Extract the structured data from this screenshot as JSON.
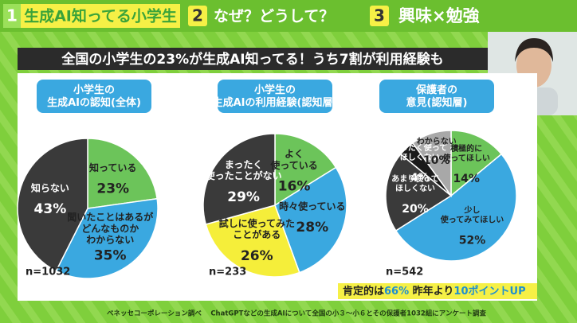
{
  "tabs": [
    {
      "number": "1",
      "label": "生成AI知ってる小学生"
    },
    {
      "number": "2",
      "label": "なぜ？どうして？"
    },
    {
      "number": "3",
      "label": "興味×勉強"
    }
  ],
  "headline": "全国の小学生の23%が生成AI知ってる！うち7割が利用経験も",
  "chart_data": [
    {
      "type": "pie",
      "title": "小学生の\n生成AIの認知(全体)",
      "n_label": "n=1032",
      "categories": [
        "知っている",
        "聞いたことはあるが\nどんなものか\nわからない",
        "知らない"
      ],
      "values": [
        23,
        35,
        43
      ],
      "value_labels": [
        "23%",
        "35%",
        "43%"
      ],
      "colors": [
        "#6cc45a",
        "#3aa8e0",
        "#3a3a3a"
      ]
    },
    {
      "type": "pie",
      "title": "小学生の\n生成AIの利用経験(認知層)",
      "n_label": "n=233",
      "categories": [
        "よく\n使っている",
        "時々使っている",
        "試しに使ってみた\nことがある",
        "まったく\n使ったことがない"
      ],
      "values": [
        16,
        28,
        26,
        29
      ],
      "value_labels": [
        "16%",
        "28%",
        "26%",
        "29%"
      ],
      "colors": [
        "#6cc45a",
        "#3aa8e0",
        "#f5ee3a",
        "#3a3a3a"
      ]
    },
    {
      "type": "pie",
      "title": "保護者の\n意見(認知層)",
      "n_label": "n=542",
      "categories": [
        "積極的に\n使ってほしい",
        "少し\n使ってみてほしい",
        "あまり使って\nほしくない",
        "まったく使って\nほしくない",
        "わからない"
      ],
      "values": [
        14,
        52,
        20,
        4,
        10
      ],
      "value_labels": [
        "14%",
        "52%",
        "20%",
        "4%",
        "10%"
      ],
      "colors": [
        "#6cc45a",
        "#3aa8e0",
        "#3a3a3a",
        "#1a1a1a",
        "#a8a8a8"
      ]
    }
  ],
  "note": [
    "肯定的は",
    "66%",
    " 昨年より",
    "10ポイントUP"
  ],
  "source": "ベネッセコーポレーション調べ　 ChatGPTなどの生成AIについて全国の小３～小６とその保護者1032組にアンケート調査"
}
